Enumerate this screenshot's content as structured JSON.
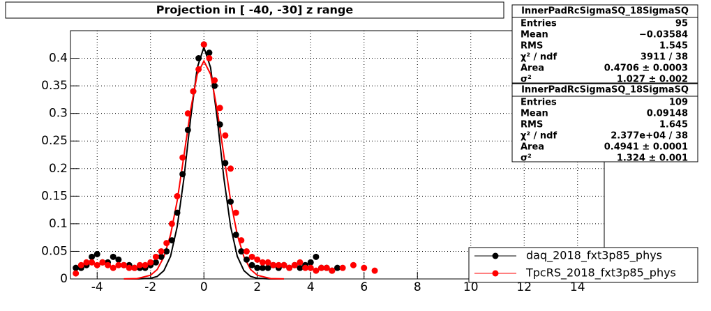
{
  "chart_data": {
    "type": "scatter",
    "title": "Projection in [ -40, -30] z range",
    "xlim": [
      -5,
      15
    ],
    "ylim": [
      0,
      0.45
    ],
    "xticks": [
      -4,
      -2,
      0,
      2,
      4,
      6,
      8,
      10,
      12,
      14
    ],
    "yticks": [
      0,
      0.05,
      0.1,
      0.15,
      0.2,
      0.25,
      0.3,
      0.35,
      0.4
    ],
    "grid": true,
    "legend": "lower right",
    "series": [
      {
        "name": "daq_2018_fxt3p85_phys",
        "color": "#000000",
        "x": [
          -4.8,
          -4.6,
          -4.4,
          -4.2,
          -4.0,
          -3.8,
          -3.6,
          -3.4,
          -3.2,
          -3.0,
          -2.8,
          -2.6,
          -2.4,
          -2.2,
          -2.0,
          -1.8,
          -1.6,
          -1.4,
          -1.2,
          -1.0,
          -0.8,
          -0.6,
          -0.4,
          -0.2,
          0,
          0.2,
          0.4,
          0.6,
          0.8,
          1.0,
          1.2,
          1.4,
          1.6,
          1.8,
          2.0,
          2.2,
          2.4,
          2.6,
          2.8,
          3.0,
          3.2,
          3.4,
          3.6,
          3.8,
          4.0,
          4.2,
          4.4,
          4.6,
          4.8,
          5.0
        ],
        "values": [
          0.02,
          0.02,
          0.025,
          0.04,
          0.045,
          0.03,
          0.03,
          0.04,
          0.035,
          0.025,
          0.025,
          0.02,
          0.02,
          0.02,
          0.025,
          0.03,
          0.04,
          0.05,
          0.07,
          0.12,
          0.19,
          0.27,
          0.34,
          0.4,
          0.425,
          0.41,
          0.35,
          0.28,
          0.21,
          0.14,
          0.08,
          0.05,
          0.035,
          0.025,
          0.02,
          0.02,
          0.02,
          0.025,
          0.02,
          0.025,
          0.02,
          0.025,
          0.02,
          0.025,
          0.03,
          0.04,
          0.02,
          0.02,
          0.015,
          0.02
        ]
      },
      {
        "name": "TpcRS_2018_fxt3p85_phys",
        "color": "#ff0000",
        "x": [
          -4.8,
          -4.6,
          -4.4,
          -4.2,
          -4.0,
          -3.8,
          -3.6,
          -3.4,
          -3.2,
          -3.0,
          -2.8,
          -2.6,
          -2.4,
          -2.2,
          -2.0,
          -1.8,
          -1.6,
          -1.4,
          -1.2,
          -1.0,
          -0.8,
          -0.6,
          -0.4,
          -0.2,
          0,
          0.2,
          0.4,
          0.6,
          0.8,
          1.0,
          1.2,
          1.4,
          1.6,
          1.8,
          2.0,
          2.2,
          2.4,
          2.6,
          2.8,
          3.0,
          3.2,
          3.4,
          3.6,
          3.8,
          4.0,
          4.2,
          4.4,
          4.6,
          4.8,
          5.2,
          5.6,
          6.0,
          6.4
        ],
        "values": [
          0.01,
          0.025,
          0.03,
          0.03,
          0.025,
          0.03,
          0.025,
          0.02,
          0.025,
          0.025,
          0.02,
          0.02,
          0.025,
          0.025,
          0.03,
          0.04,
          0.05,
          0.065,
          0.1,
          0.15,
          0.22,
          0.3,
          0.34,
          0.38,
          0.425,
          0.4,
          0.36,
          0.31,
          0.26,
          0.2,
          0.12,
          0.07,
          0.05,
          0.04,
          0.035,
          0.03,
          0.03,
          0.025,
          0.025,
          0.025,
          0.02,
          0.025,
          0.03,
          0.02,
          0.02,
          0.015,
          0.02,
          0.02,
          0.015,
          0.02,
          0.025,
          0.02,
          0.015
        ]
      }
    ],
    "fit_curves": [
      {
        "color": "#000000",
        "x": [
          -3,
          -2.5,
          -2,
          -1.75,
          -1.5,
          -1.25,
          -1,
          -0.75,
          -0.5,
          -0.25,
          0,
          0.25,
          0.5,
          0.75,
          1,
          1.25,
          1.5,
          1.75,
          2,
          2.5,
          3
        ],
        "values": [
          0,
          0,
          0.0011,
          0.0044,
          0.015,
          0.041,
          0.095,
          0.182,
          0.29,
          0.383,
          0.42,
          0.383,
          0.29,
          0.182,
          0.095,
          0.041,
          0.015,
          0.0044,
          0.0011,
          0,
          0
        ]
      },
      {
        "color": "#ff0000",
        "x": [
          -3,
          -2.5,
          -2,
          -1.75,
          -1.5,
          -1.25,
          -1,
          -0.75,
          -0.5,
          -0.25,
          0,
          0.25,
          0.5,
          0.75,
          1,
          1.25,
          1.5,
          1.75,
          2,
          2.5,
          3
        ],
        "values": [
          0.0001,
          0.0007,
          0.0067,
          0.017,
          0.04,
          0.08,
          0.142,
          0.223,
          0.306,
          0.371,
          0.395,
          0.371,
          0.306,
          0.223,
          0.142,
          0.08,
          0.04,
          0.017,
          0.0067,
          0.0007,
          0.0001
        ]
      }
    ],
    "stat_boxes": [
      {
        "title": "InnerPadRcSigmaSQ_18SigmaSQ",
        "rows": [
          [
            "Entries",
            "95"
          ],
          [
            "Mean",
            "−0.03584"
          ],
          [
            "RMS",
            "1.545"
          ],
          [
            "χ² / ndf",
            "3911 / 38"
          ],
          [
            "Area",
            "0.4706 ± 0.0003"
          ],
          [
            "σ²",
            "1.027 ± 0.002"
          ]
        ]
      },
      {
        "title": "InnerPadRcSigmaSQ_18SigmaSQ",
        "rows": [
          [
            "Entries",
            "109"
          ],
          [
            "Mean",
            "0.09148"
          ],
          [
            "RMS",
            "1.645"
          ],
          [
            "χ² / ndf",
            "2.377e+04 / 38"
          ],
          [
            "Area",
            "0.4941 ± 0.0001"
          ],
          [
            "σ²",
            "1.324 ± 0.001"
          ]
        ]
      }
    ]
  }
}
